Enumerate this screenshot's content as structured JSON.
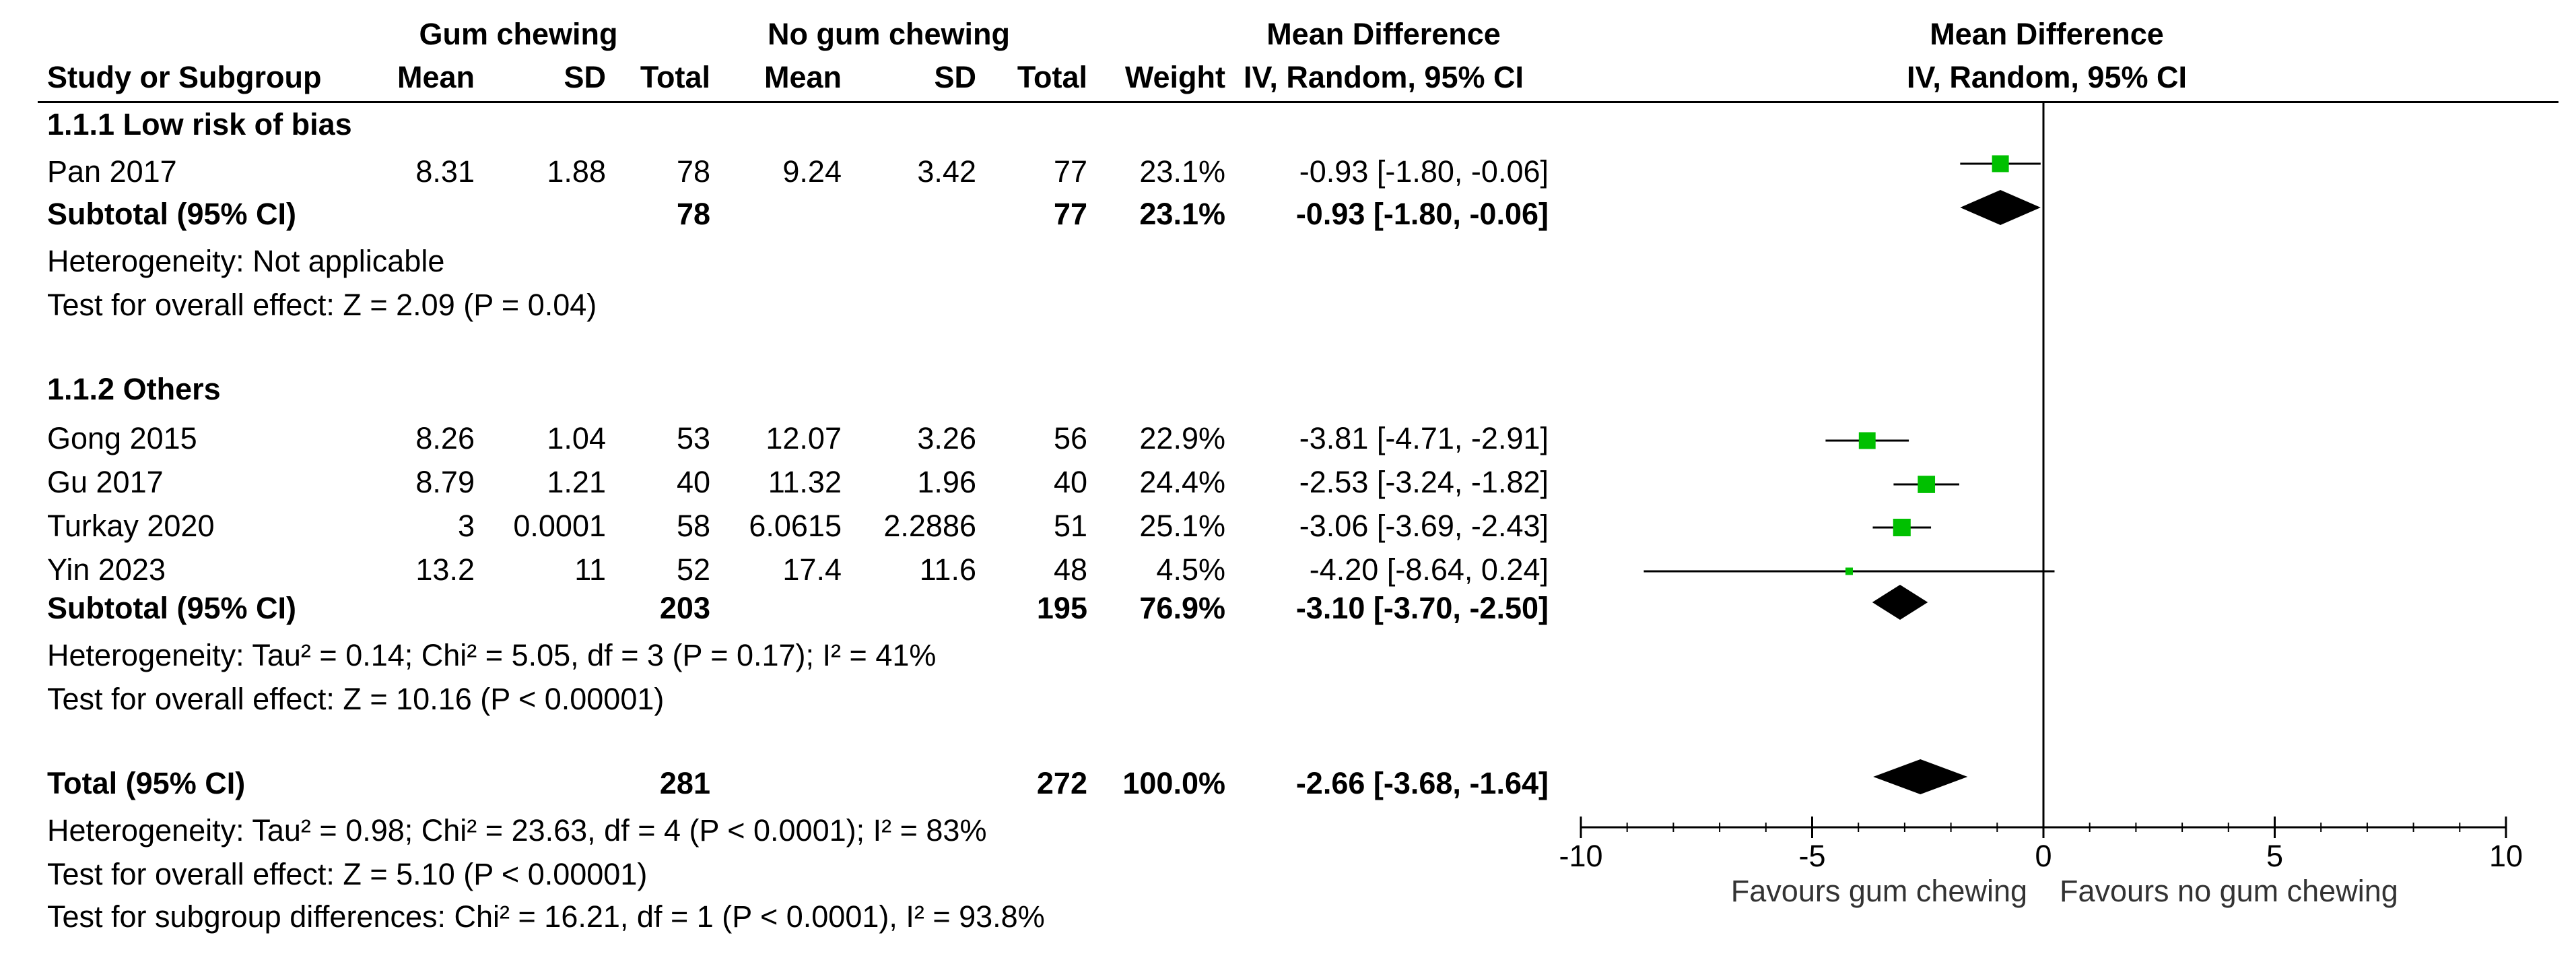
{
  "header": {
    "group1_title": "Gum chewing",
    "group2_title": "No gum chewing",
    "effect_title": "Mean Difference",
    "effect_method": "IV, Random, 95% CI",
    "plot_title": "Mean Difference",
    "plot_method": "IV, Random, 95% CI",
    "columns": [
      "Study or Subgroup",
      "Mean",
      "SD",
      "Total",
      "Mean",
      "SD",
      "Total",
      "Weight"
    ]
  },
  "subgroups": [
    {
      "label": "1.1.1 Low risk of bias",
      "studies": [
        {
          "name": "Pan 2017",
          "m1": "8.31",
          "sd1": "1.88",
          "n1": "78",
          "m2": "9.24",
          "sd2": "3.42",
          "n2": "77",
          "weight": "23.1%",
          "ci": "-0.93 [-1.80, -0.06]"
        }
      ],
      "subtotal": {
        "label": "Subtotal (95% CI)",
        "n1": "78",
        "n2": "77",
        "weight": "23.1%",
        "ci": "-0.93 [-1.80, -0.06]"
      },
      "heterogeneity": "Heterogeneity: Not applicable",
      "overall": "Test for overall effect: Z = 2.09 (P = 0.04)"
    },
    {
      "label": "1.1.2 Others",
      "studies": [
        {
          "name": "Gong 2015",
          "m1": "8.26",
          "sd1": "1.04",
          "n1": "53",
          "m2": "12.07",
          "sd2": "3.26",
          "n2": "56",
          "weight": "22.9%",
          "ci": "-3.81 [-4.71, -2.91]"
        },
        {
          "name": "Gu 2017",
          "m1": "8.79",
          "sd1": "1.21",
          "n1": "40",
          "m2": "11.32",
          "sd2": "1.96",
          "n2": "40",
          "weight": "24.4%",
          "ci": "-2.53 [-3.24, -1.82]"
        },
        {
          "name": "Turkay 2020",
          "m1": "3",
          "sd1": "0.0001",
          "n1": "58",
          "m2": "6.0615",
          "sd2": "2.2886",
          "n2": "51",
          "weight": "25.1%",
          "ci": "-3.06 [-3.69, -2.43]"
        },
        {
          "name": "Yin 2023",
          "m1": "13.2",
          "sd1": "11",
          "n1": "52",
          "m2": "17.4",
          "sd2": "11.6",
          "n2": "48",
          "weight": "4.5%",
          "ci": "-4.20 [-8.64, 0.24]"
        }
      ],
      "subtotal": {
        "label": "Subtotal (95% CI)",
        "n1": "203",
        "n2": "195",
        "weight": "76.9%",
        "ci": "-3.10 [-3.70, -2.50]"
      },
      "heterogeneity": "Heterogeneity: Tau² = 0.14; Chi² = 5.05, df = 3 (P = 0.17); I² = 41%",
      "overall": "Test for overall effect: Z = 10.16 (P < 0.00001)"
    }
  ],
  "total": {
    "label": "Total (95% CI)",
    "n1": "281",
    "n2": "272",
    "weight": "100.0%",
    "ci": "-2.66 [-3.68, -1.64]",
    "heterogeneity": "Heterogeneity: Tau² = 0.98; Chi² = 23.63, df = 4 (P < 0.0001); I² = 83%",
    "overall": "Test for overall effect: Z = 5.10 (P < 0.00001)",
    "subgroup_diff": "Test for subgroup differences: Chi² = 16.21, df = 1 (P < 0.0001), I² = 93.8%"
  },
  "colors": {
    "study_marker": "#00c000",
    "diamond": "#000000",
    "lines": "#000000"
  },
  "chart_data": {
    "type": "forest",
    "xlim": [
      -10,
      10
    ],
    "xticks": [
      -10,
      -5,
      0,
      5,
      10
    ],
    "xtick_labels": [
      "-10",
      "-5",
      "0",
      "5",
      "10"
    ],
    "favours_left": "Favours gum chewing",
    "favours_right": "Favours no gum chewing",
    "studies": [
      {
        "name": "Pan 2017",
        "md": -0.93,
        "lo": -1.8,
        "hi": -0.06,
        "weight": 23.1
      },
      {
        "name": "Gong 2015",
        "md": -3.81,
        "lo": -4.71,
        "hi": -2.91,
        "weight": 22.9
      },
      {
        "name": "Gu 2017",
        "md": -2.53,
        "lo": -3.24,
        "hi": -1.82,
        "weight": 24.4
      },
      {
        "name": "Turkay 2020",
        "md": -3.06,
        "lo": -3.69,
        "hi": -2.43,
        "weight": 25.1
      },
      {
        "name": "Yin 2023",
        "md": -4.2,
        "lo": -8.64,
        "hi": 0.24,
        "weight": 4.5
      }
    ],
    "diamonds": [
      {
        "name": "Subtotal 1.1.1",
        "md": -0.93,
        "lo": -1.8,
        "hi": -0.06
      },
      {
        "name": "Subtotal 1.1.2",
        "md": -3.1,
        "lo": -3.7,
        "hi": -2.5
      },
      {
        "name": "Total",
        "md": -2.66,
        "lo": -3.68,
        "hi": -1.64
      }
    ]
  }
}
